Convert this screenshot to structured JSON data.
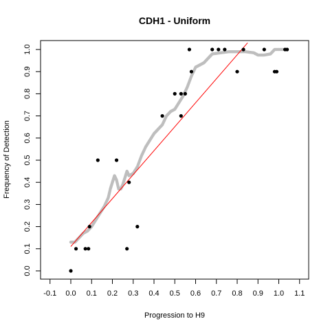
{
  "chart_data": {
    "type": "scatter",
    "title": "CDH1 - Uniform",
    "xlabel": "Progression to H9",
    "ylabel": "Frequency of Detection",
    "xlim": [
      -0.1,
      1.1
    ],
    "ylim": [
      0.0,
      1.0
    ],
    "x_ticks": [
      "-0.1",
      "0.0",
      "0.1",
      "0.2",
      "0.3",
      "0.4",
      "0.5",
      "0.6",
      "0.7",
      "0.8",
      "0.9",
      "1.0",
      "1.1"
    ],
    "y_ticks": [
      "0.0",
      "0.1",
      "0.2",
      "0.3",
      "0.4",
      "0.5",
      "0.6",
      "0.7",
      "0.8",
      "0.9",
      "1.0"
    ],
    "grid": false,
    "series": [
      {
        "kind": "points",
        "color": "#000000",
        "points": [
          [
            0.0,
            0.0
          ],
          [
            0.025,
            0.1
          ],
          [
            0.07,
            0.1
          ],
          [
            0.085,
            0.1
          ],
          [
            0.09,
            0.2
          ],
          [
            0.13,
            0.5
          ],
          [
            0.22,
            0.5
          ],
          [
            0.27,
            0.1
          ],
          [
            0.28,
            0.4
          ],
          [
            0.32,
            0.2
          ],
          [
            0.44,
            0.7
          ],
          [
            0.5,
            0.8
          ],
          [
            0.53,
            0.7
          ],
          [
            0.53,
            0.8
          ],
          [
            0.55,
            0.8
          ],
          [
            0.57,
            1.0
          ],
          [
            0.58,
            0.9
          ],
          [
            0.68,
            1.0
          ],
          [
            0.71,
            1.0
          ],
          [
            0.74,
            1.0
          ],
          [
            0.8,
            0.9
          ],
          [
            0.83,
            1.0
          ],
          [
            0.93,
            1.0
          ],
          [
            0.98,
            0.9
          ],
          [
            0.99,
            0.9
          ],
          [
            1.03,
            1.0
          ],
          [
            1.04,
            1.0
          ]
        ]
      },
      {
        "kind": "smooth-curve",
        "color": "#bebebe",
        "points": [
          [
            0.0,
            0.13
          ],
          [
            0.02,
            0.13
          ],
          [
            0.04,
            0.15
          ],
          [
            0.06,
            0.17
          ],
          [
            0.08,
            0.18
          ],
          [
            0.1,
            0.2
          ],
          [
            0.12,
            0.23
          ],
          [
            0.14,
            0.26
          ],
          [
            0.16,
            0.29
          ],
          [
            0.18,
            0.33
          ],
          [
            0.19,
            0.37
          ],
          [
            0.2,
            0.4
          ],
          [
            0.21,
            0.43
          ],
          [
            0.22,
            0.41
          ],
          [
            0.23,
            0.37
          ],
          [
            0.24,
            0.37
          ],
          [
            0.25,
            0.39
          ],
          [
            0.26,
            0.42
          ],
          [
            0.27,
            0.45
          ],
          [
            0.28,
            0.43
          ],
          [
            0.3,
            0.44
          ],
          [
            0.32,
            0.47
          ],
          [
            0.34,
            0.52
          ],
          [
            0.36,
            0.56
          ],
          [
            0.38,
            0.59
          ],
          [
            0.4,
            0.62
          ],
          [
            0.42,
            0.64
          ],
          [
            0.44,
            0.66
          ],
          [
            0.46,
            0.7
          ],
          [
            0.48,
            0.72
          ],
          [
            0.5,
            0.73
          ],
          [
            0.52,
            0.76
          ],
          [
            0.54,
            0.79
          ],
          [
            0.56,
            0.83
          ],
          [
            0.58,
            0.88
          ],
          [
            0.6,
            0.92
          ],
          [
            0.62,
            0.93
          ],
          [
            0.64,
            0.94
          ],
          [
            0.66,
            0.96
          ],
          [
            0.68,
            0.98
          ],
          [
            0.72,
            0.985
          ],
          [
            0.76,
            0.99
          ],
          [
            0.8,
            0.99
          ],
          [
            0.84,
            0.99
          ],
          [
            0.88,
            0.985
          ],
          [
            0.9,
            0.975
          ],
          [
            0.93,
            0.975
          ],
          [
            0.96,
            0.98
          ],
          [
            0.98,
            1.0
          ],
          [
            1.02,
            1.0
          ]
        ]
      },
      {
        "kind": "regression-line",
        "color": "#ff0000",
        "x": [
          0.0,
          0.85
        ],
        "y": [
          0.11,
          1.03
        ]
      }
    ]
  }
}
